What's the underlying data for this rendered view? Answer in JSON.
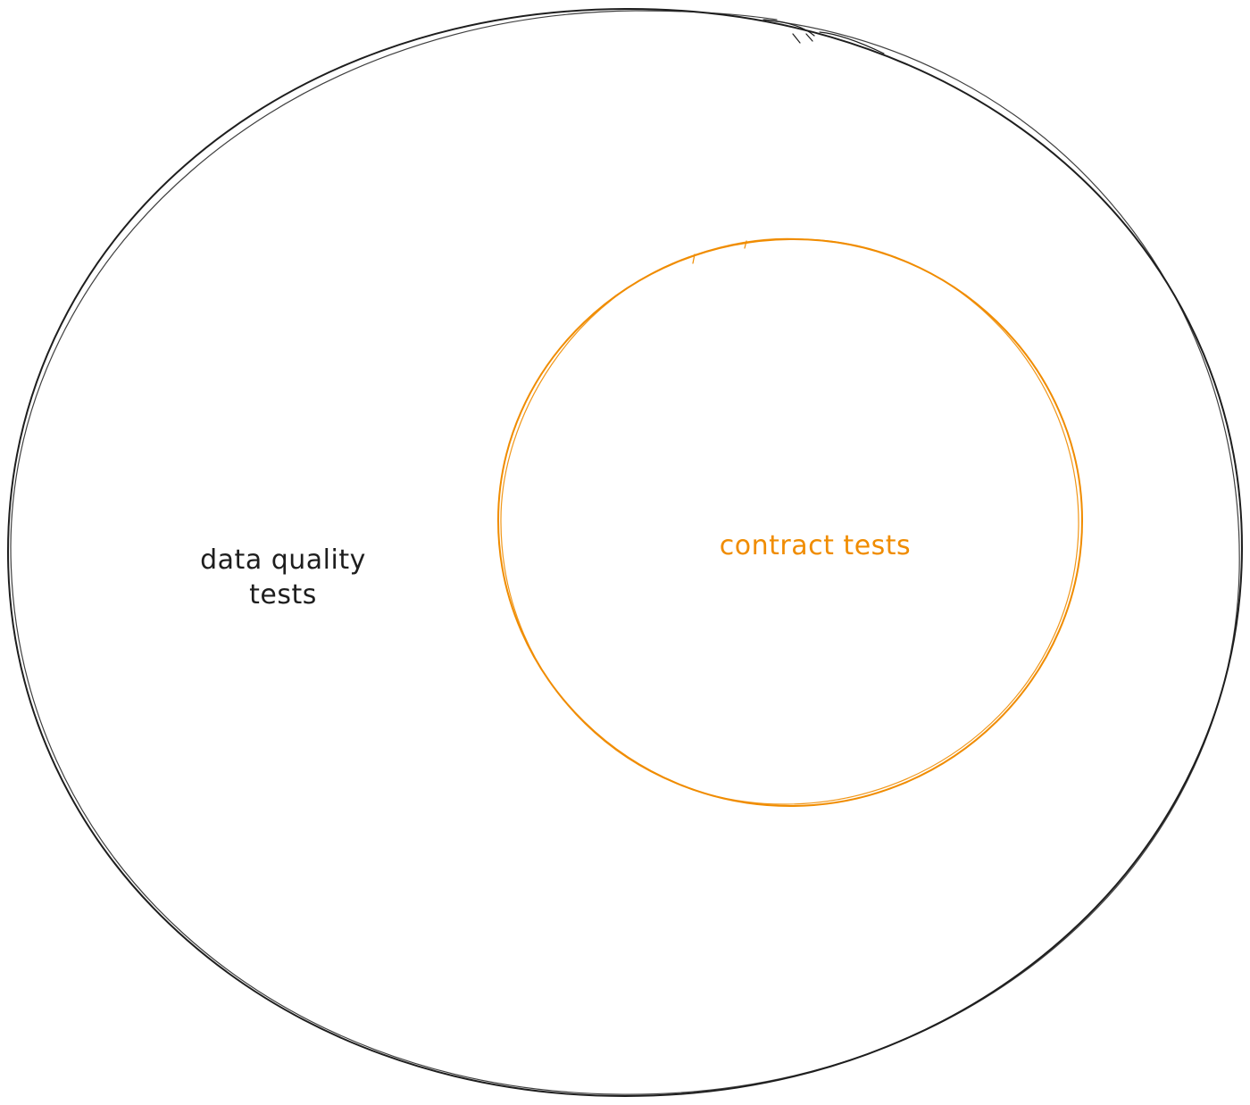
{
  "diagram": {
    "outer_set": {
      "label_line1": "data quality",
      "label_line2": "tests",
      "color": "#1e1e1e"
    },
    "inner_set": {
      "label": "contract tests",
      "color": "#f08c00"
    },
    "background": "#ffffff"
  }
}
